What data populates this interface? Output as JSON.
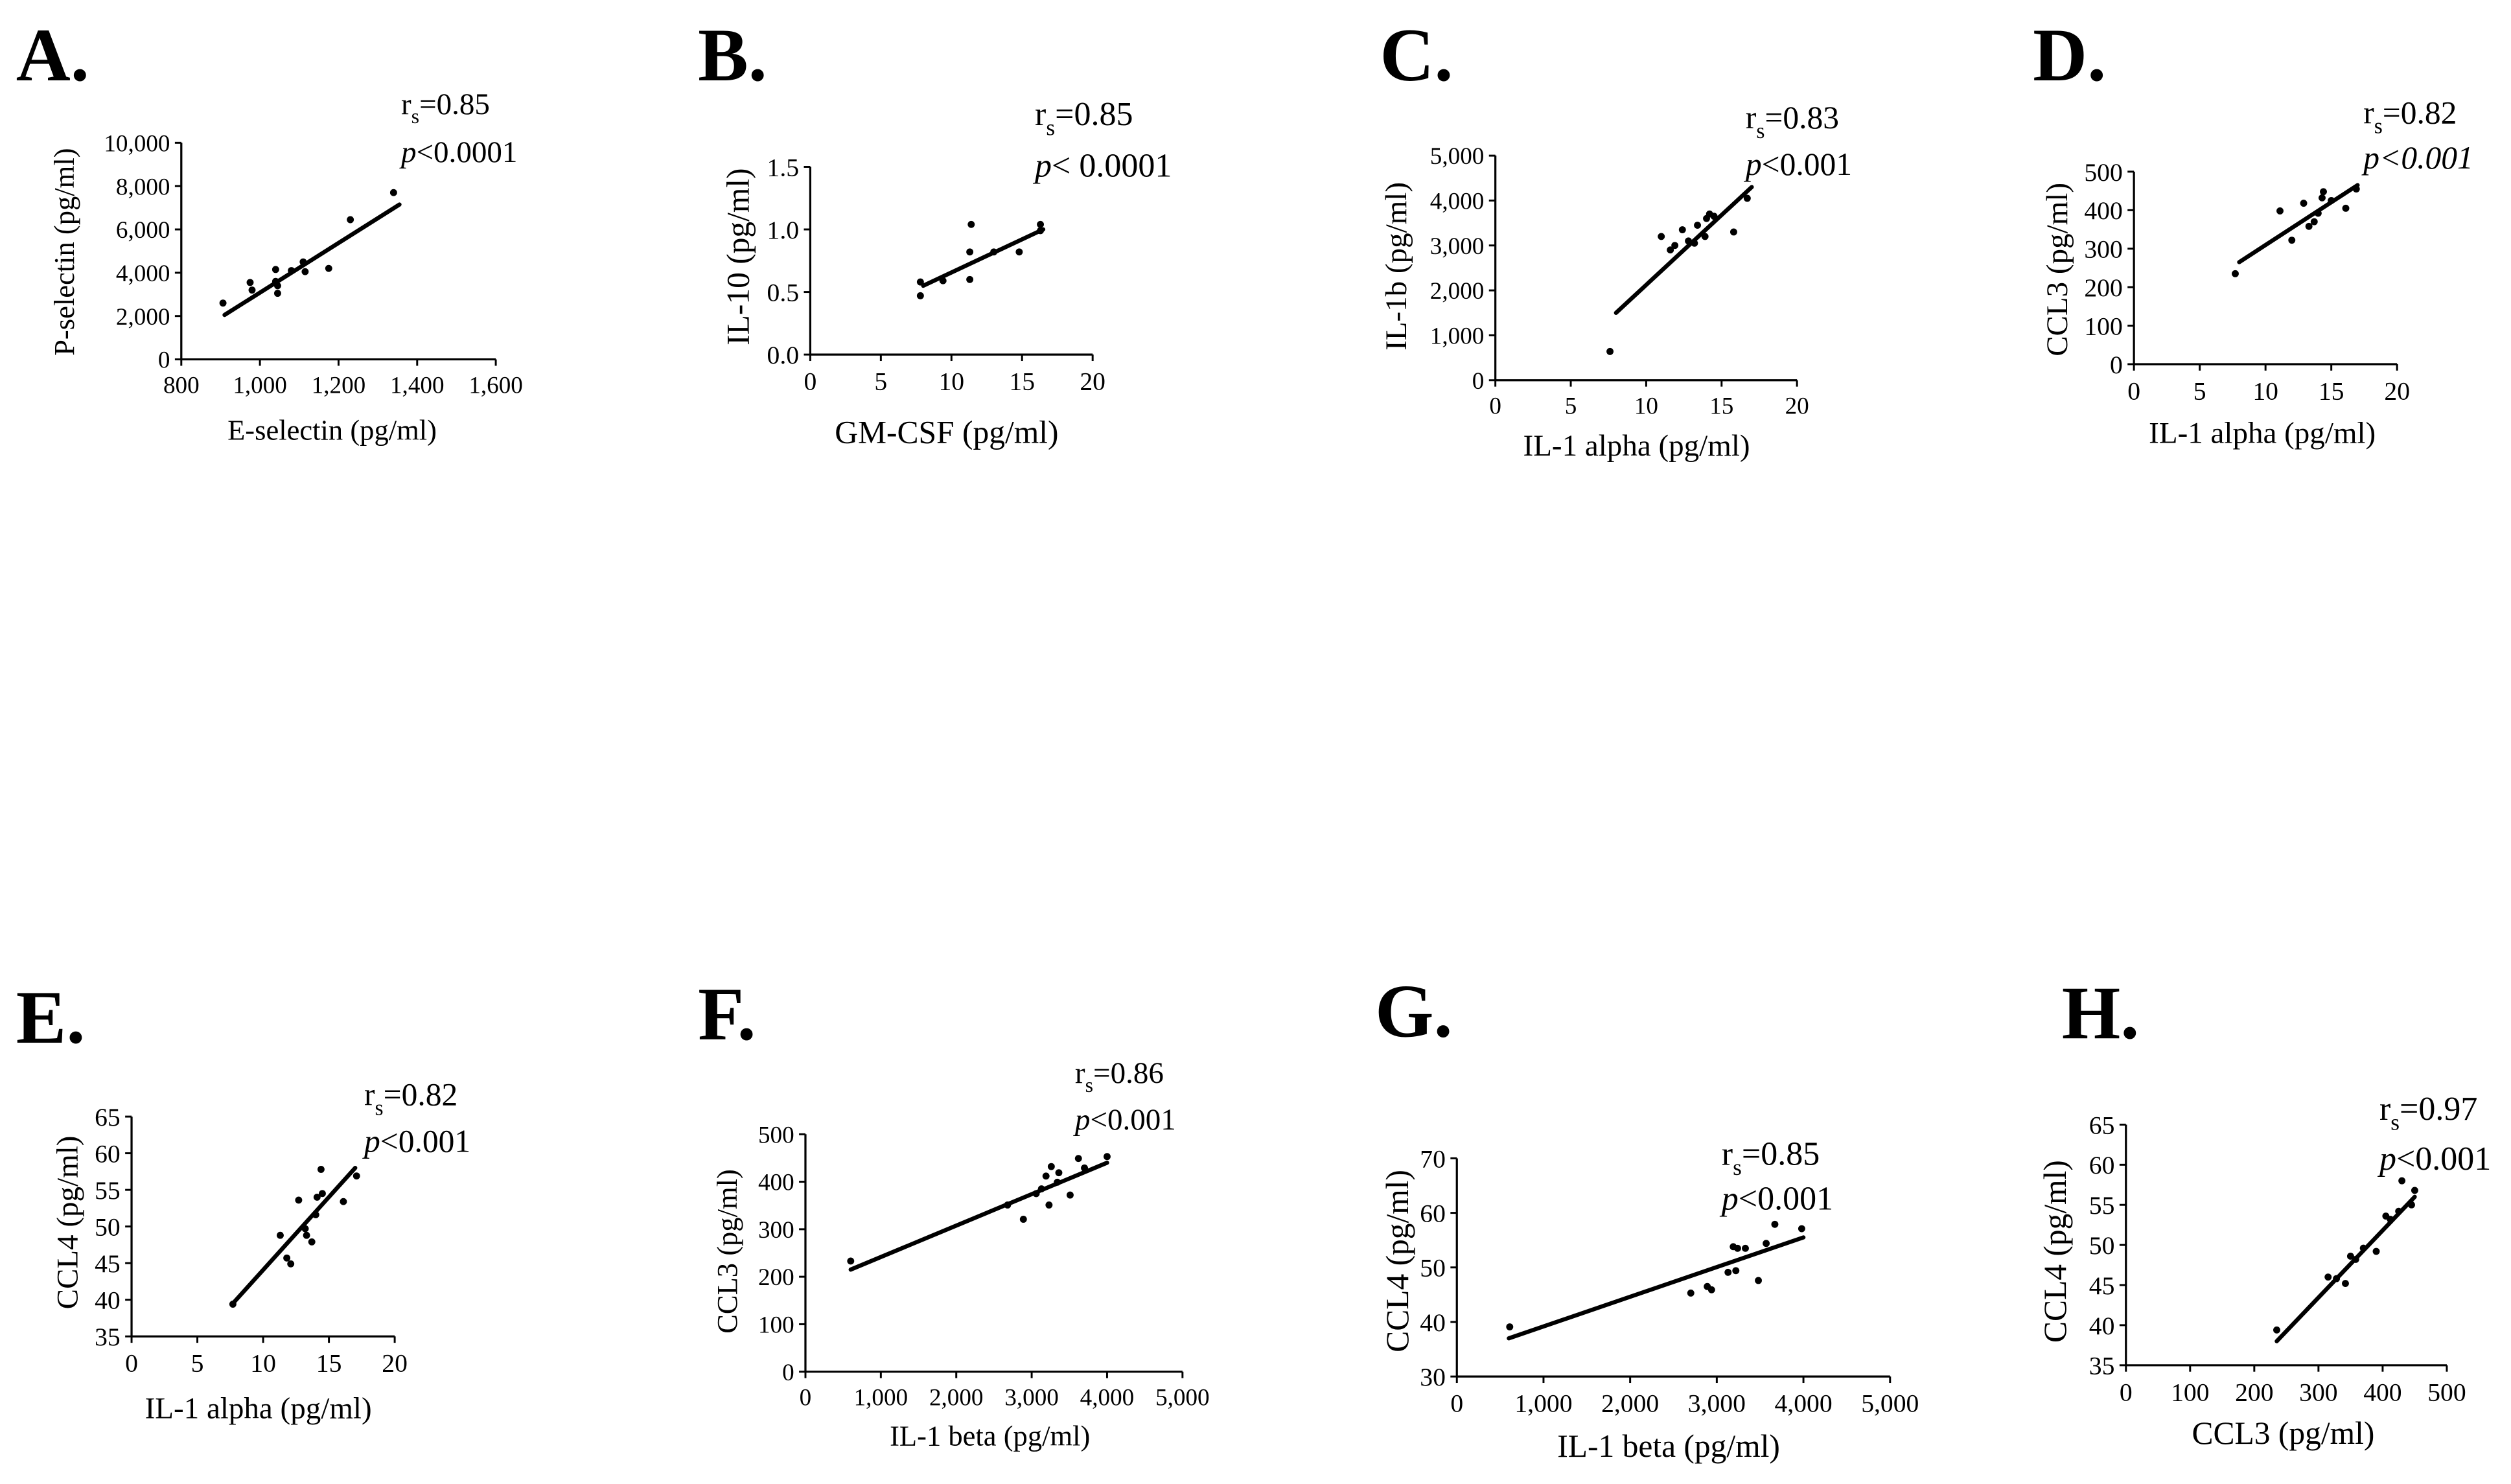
{
  "chart_data": [
    {
      "panel_label": "A.",
      "type": "scatter",
      "xlabel": "E-selectin (pg/ml)",
      "ylabel": "P-selectin (pg/ml)",
      "xlim": [
        800,
        1600
      ],
      "ylim": [
        0,
        10000
      ],
      "xticks": [
        800,
        1000,
        1200,
        1400,
        1600
      ],
      "xtick_labels": [
        "800",
        "1,000",
        "1,200",
        "1,400",
        "1,600"
      ],
      "yticks": [
        0,
        2000,
        4000,
        6000,
        8000,
        10000
      ],
      "ytick_labels": [
        "0",
        "2,000",
        "4,000",
        "6,000",
        "8,000",
        "10,000"
      ],
      "points": [
        [
          906,
          2600
        ],
        [
          975,
          3550
        ],
        [
          980,
          3200
        ],
        [
          1040,
          4150
        ],
        [
          1040,
          3600
        ],
        [
          1045,
          3400
        ],
        [
          1045,
          3050
        ],
        [
          1080,
          4100
        ],
        [
          1110,
          4500
        ],
        [
          1115,
          4050
        ],
        [
          1175,
          4200
        ],
        [
          1230,
          6450
        ],
        [
          1340,
          7700
        ]
      ],
      "regression_line": [
        [
          910,
          2050
        ],
        [
          1355,
          7150
        ]
      ],
      "annotation": {
        "r_text": "r",
        "r_sub": "s",
        "r_value": "=0.85",
        "p_text": "p",
        "p_value": "<0.0001"
      }
    },
    {
      "panel_label": "B.",
      "type": "scatter",
      "xlabel": "GM-CSF (pg/ml)",
      "ylabel": "IL-10 (pg/ml)",
      "xlim": [
        0,
        20
      ],
      "ylim": [
        0,
        1.5
      ],
      "xticks": [
        0,
        5,
        10,
        15,
        20
      ],
      "xtick_labels": [
        "0",
        "5",
        "10",
        "15",
        "20"
      ],
      "yticks": [
        0,
        0.5,
        1.0,
        1.5
      ],
      "ytick_labels": [
        "0.0",
        "0.5",
        "1.0",
        "1.5"
      ],
      "points": [
        [
          7.8,
          0.47
        ],
        [
          7.8,
          0.58
        ],
        [
          9.4,
          0.59
        ],
        [
          11.3,
          0.6
        ],
        [
          11.3,
          0.82
        ],
        [
          11.4,
          1.04
        ],
        [
          13,
          0.82
        ],
        [
          14.8,
          0.82
        ],
        [
          16.3,
          1.04
        ],
        [
          16.3,
          0.99
        ]
      ],
      "regression_line": [
        [
          8,
          0.55
        ],
        [
          16.5,
          1.0
        ]
      ],
      "annotation": {
        "r_text": "r",
        "r_sub": "s",
        "r_value": "=0.85",
        "p_text": "p",
        "p_value": "< 0.0001"
      }
    },
    {
      "panel_label": "C.",
      "type": "scatter",
      "xlabel": "IL-1 alpha (pg/ml)",
      "ylabel": "IL-1b (pg/ml)",
      "xlim": [
        0,
        20
      ],
      "ylim": [
        0,
        5000
      ],
      "xticks": [
        0,
        5,
        10,
        15,
        20
      ],
      "xtick_labels": [
        "0",
        "5",
        "10",
        "15",
        "20"
      ],
      "yticks": [
        0,
        1000,
        2000,
        3000,
        4000,
        5000
      ],
      "ytick_labels": [
        "0",
        "1,000",
        "2,000",
        "3,000",
        "4,000",
        "5,000"
      ],
      "points": [
        [
          7.6,
          640
        ],
        [
          11,
          3200
        ],
        [
          11.6,
          2900
        ],
        [
          11.9,
          3000
        ],
        [
          12.4,
          3350
        ],
        [
          12.8,
          3100
        ],
        [
          13.2,
          3050
        ],
        [
          13.4,
          3450
        ],
        [
          13.9,
          3200
        ],
        [
          14.0,
          3600
        ],
        [
          14.2,
          3700
        ],
        [
          14.5,
          3650
        ],
        [
          15.8,
          3300
        ],
        [
          16.7,
          4050
        ]
      ],
      "regression_line": [
        [
          8,
          1500
        ],
        [
          17,
          4300
        ]
      ],
      "annotation": {
        "r_text": "r",
        "r_sub": "s",
        "r_value": "=0.83",
        "p_text": "p",
        "p_value": "<0.001"
      }
    },
    {
      "panel_label": "D.",
      "type": "scatter",
      "xlabel": "IL-1 alpha (pg/ml)",
      "ylabel": "CCL3 (pg/ml)",
      "xlim": [
        0,
        20
      ],
      "ylim": [
        0,
        500
      ],
      "xticks": [
        0,
        5,
        10,
        15,
        20
      ],
      "xtick_labels": [
        "0",
        "5",
        "10",
        "15",
        "20"
      ],
      "yticks": [
        0,
        100,
        200,
        300,
        400,
        500
      ],
      "ytick_labels": [
        "0",
        "100",
        "200",
        "300",
        "400",
        "500"
      ],
      "points": [
        [
          7.7,
          235
        ],
        [
          11.1,
          398
        ],
        [
          12,
          322
        ],
        [
          12.9,
          418
        ],
        [
          13.3,
          358
        ],
        [
          13.7,
          370
        ],
        [
          14,
          392
        ],
        [
          14.3,
          432
        ],
        [
          14.4,
          448
        ],
        [
          15,
          425
        ],
        [
          16.1,
          405
        ],
        [
          16.9,
          455
        ]
      ],
      "regression_line": [
        [
          8,
          265
        ],
        [
          17,
          465
        ]
      ],
      "annotation": {
        "r_text": "r",
        "r_sub": "s",
        "r_value": "=0.82",
        "p_text": "p",
        "p_value": "<0.001"
      }
    },
    {
      "panel_label": "E.",
      "type": "scatter",
      "xlabel": "IL-1 alpha (pg/ml)",
      "ylabel": "CCL4 (pg/ml)",
      "xlim": [
        0,
        20
      ],
      "ylim": [
        35,
        65
      ],
      "xticks": [
        0,
        5,
        10,
        15,
        20
      ],
      "xtick_labels": [
        "0",
        "5",
        "10",
        "15",
        "20"
      ],
      "yticks": [
        35,
        40,
        45,
        50,
        55,
        60,
        65
      ],
      "ytick_labels": [
        "35",
        "40",
        "45",
        "50",
        "55",
        "60",
        "65"
      ],
      "points": [
        [
          7.7,
          39.4
        ],
        [
          11.3,
          48.8
        ],
        [
          11.8,
          45.7
        ],
        [
          12.1,
          44.9
        ],
        [
          12.7,
          53.6
        ],
        [
          13.2,
          49.7
        ],
        [
          13.3,
          48.8
        ],
        [
          13.7,
          47.9
        ],
        [
          14,
          51.6
        ],
        [
          14.1,
          54
        ],
        [
          14.4,
          57.8
        ],
        [
          14.5,
          54.5
        ],
        [
          16.1,
          53.4
        ],
        [
          17.1,
          56.9
        ]
      ],
      "regression_line": [
        [
          7.7,
          39.5
        ],
        [
          17,
          58
        ]
      ],
      "annotation": {
        "r_text": "r",
        "r_sub": "s",
        "r_value": "=0.82",
        "p_text": "p",
        "p_value": "<0.001"
      }
    },
    {
      "panel_label": "F.",
      "type": "scatter",
      "xlabel": "IL-1 beta (pg/ml)",
      "ylabel": "CCL3 (pg/ml)",
      "xlim": [
        0,
        5000
      ],
      "ylim": [
        0,
        500
      ],
      "xticks": [
        0,
        1000,
        2000,
        3000,
        4000,
        5000
      ],
      "xtick_labels": [
        "0",
        "1,000",
        "2,000",
        "3,000",
        "4,000",
        "5,000"
      ],
      "yticks": [
        0,
        100,
        200,
        300,
        400,
        500
      ],
      "ytick_labels": [
        "0",
        "100",
        "200",
        "300",
        "400",
        "500"
      ],
      "points": [
        [
          600,
          233
        ],
        [
          2680,
          351
        ],
        [
          2890,
          321
        ],
        [
          3060,
          375
        ],
        [
          3130,
          385
        ],
        [
          3190,
          412
        ],
        [
          3230,
          351
        ],
        [
          3260,
          432
        ],
        [
          3340,
          399
        ],
        [
          3360,
          419
        ],
        [
          3510,
          372
        ],
        [
          3620,
          449
        ],
        [
          3700,
          429
        ],
        [
          4000,
          453
        ]
      ],
      "regression_line": [
        [
          600,
          215
        ],
        [
          4000,
          440
        ]
      ],
      "annotation": {
        "r_text": "r",
        "r_sub": "s",
        "r_value": "=0.86",
        "p_text": "p",
        "p_value": "<0.001"
      }
    },
    {
      "panel_label": "G.",
      "type": "scatter",
      "xlabel": "IL-1 beta (pg/ml)",
      "ylabel": "CCL4 (pg/ml)",
      "xlim": [
        0,
        5000
      ],
      "ylim": [
        30,
        70
      ],
      "xticks": [
        0,
        1000,
        2000,
        3000,
        4000,
        5000
      ],
      "xtick_labels": [
        "0",
        "1,000",
        "2,000",
        "3,000",
        "4,000",
        "5,000"
      ],
      "yticks": [
        30,
        40,
        50,
        60,
        70
      ],
      "ytick_labels": [
        "30",
        "40",
        "50",
        "60",
        "70"
      ],
      "points": [
        [
          610,
          39.1
        ],
        [
          2700,
          45.3
        ],
        [
          2890,
          46.5
        ],
        [
          2940,
          45.9
        ],
        [
          3130,
          49.1
        ],
        [
          3190,
          53.8
        ],
        [
          3220,
          49.4
        ],
        [
          3240,
          53.5
        ],
        [
          3330,
          53.5
        ],
        [
          3480,
          47.6
        ],
        [
          3570,
          54.4
        ],
        [
          3670,
          57.9
        ],
        [
          3980,
          57.1
        ]
      ],
      "regression_line": [
        [
          600,
          37
        ],
        [
          4000,
          55.5
        ]
      ],
      "annotation": {
        "r_text": "r",
        "r_sub": "s",
        "r_value": "=0.85",
        "p_text": "p",
        "p_value": "<0.001"
      }
    },
    {
      "panel_label": "H.",
      "type": "scatter",
      "xlabel": "CCL3 (pg/ml)",
      "ylabel": "CCL4 (pg/ml)",
      "xlim": [
        0,
        500
      ],
      "ylim": [
        35,
        65
      ],
      "xticks": [
        0,
        100,
        200,
        300,
        400,
        500
      ],
      "xtick_labels": [
        "0",
        "100",
        "200",
        "300",
        "400",
        "500"
      ],
      "yticks": [
        35,
        40,
        45,
        50,
        55,
        60,
        65
      ],
      "ytick_labels": [
        "35",
        "40",
        "45",
        "50",
        "55",
        "60",
        "65"
      ],
      "points": [
        [
          235,
          39.4
        ],
        [
          315,
          46
        ],
        [
          328,
          45.8
        ],
        [
          342,
          45.2
        ],
        [
          350,
          48.6
        ],
        [
          358,
          48.2
        ],
        [
          370,
          49.6
        ],
        [
          390,
          49.2
        ],
        [
          405,
          53.6
        ],
        [
          412,
          53.2
        ],
        [
          425,
          54.2
        ],
        [
          430,
          58
        ],
        [
          445,
          55
        ],
        [
          450,
          56.8
        ]
      ],
      "regression_line": [
        [
          235,
          38
        ],
        [
          450,
          56
        ]
      ],
      "annotation": {
        "r_text": "r",
        "r_sub": "s",
        "r_value": "=0.97",
        "p_text": "p",
        "p_value": "<0.001"
      }
    }
  ]
}
